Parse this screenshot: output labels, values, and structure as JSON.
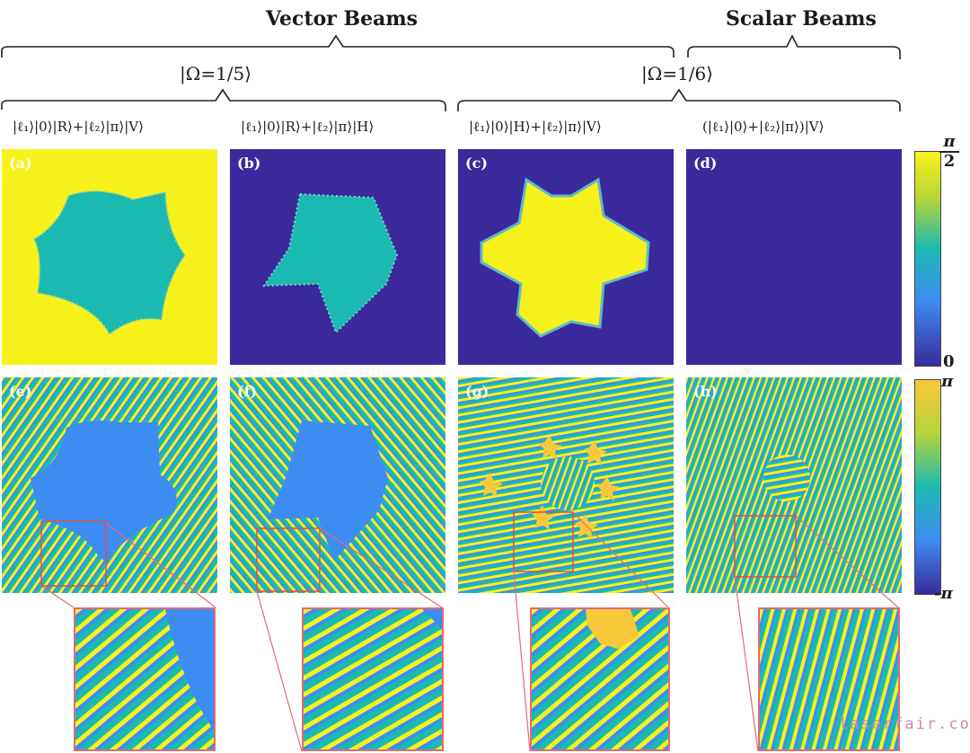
{
  "headers": {
    "vector_beams": "Vector Beams",
    "scalar_beams": "Scalar Beams",
    "omega_left": "|Ω=1/5⟩",
    "omega_right": "|Ω=1/6⟩"
  },
  "states": [
    "|ℓ₁⟩|0⟩|R⟩+|ℓ₂⟩|π⟩|V⟩",
    "|ℓ₁⟩|0⟩|R⟩+|ℓ₂⟩|π⟩|H⟩",
    "|ℓ₁⟩|0⟩|H⟩+|ℓ₂⟩|π⟩|V⟩",
    "(|ℓ₁⟩|0⟩+|ℓ₂⟩|π⟩)|V⟩"
  ],
  "panel_labels": {
    "top": [
      "(a)",
      "(b)",
      "(c)",
      "(d)"
    ],
    "bottom": [
      "(e)",
      "(f)",
      "(g)",
      "(h)"
    ]
  },
  "colorbars": {
    "top": {
      "max_label": "π",
      "max_denominator": "2",
      "min_label": "0"
    },
    "bottom": {
      "max_label": "π",
      "min_label": "-π"
    }
  },
  "colors": {
    "yellow": "#f8f21c",
    "teal": "#1bbab0",
    "indigo": "#3a2a9c",
    "blue": "#3d8cf2",
    "zoom_frame": "#e06a7a"
  },
  "watermark": "laserfair.com"
}
